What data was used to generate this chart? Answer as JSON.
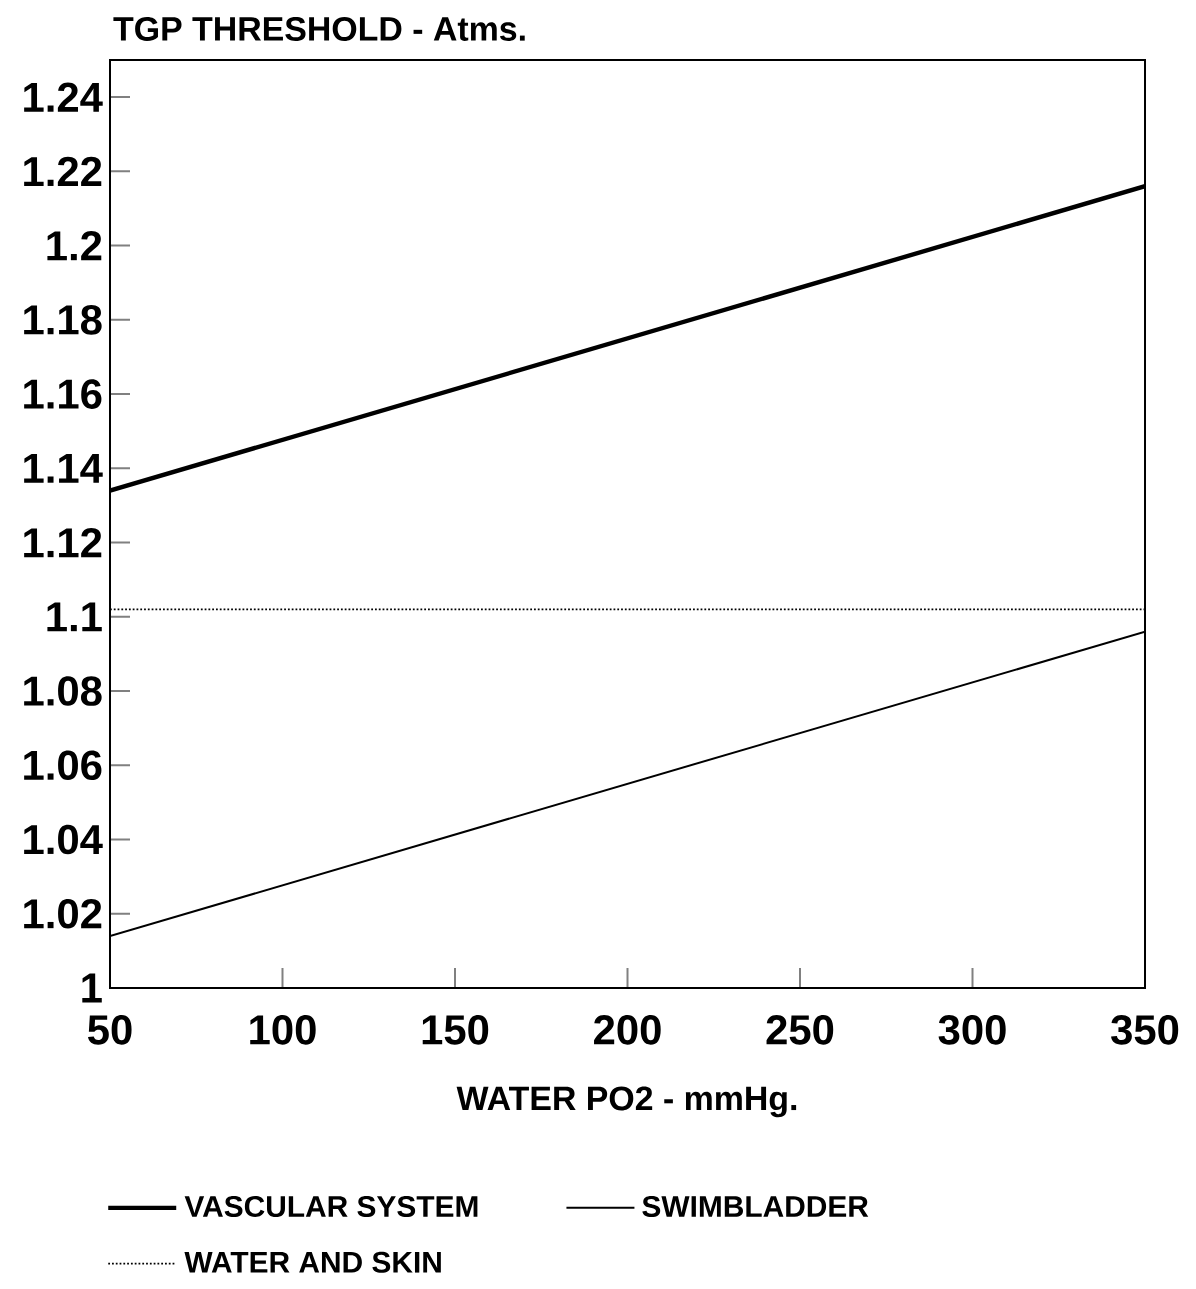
{
  "chart_data": {
    "type": "line",
    "ylabel": "TGP THRESHOLD - Atms.",
    "xlabel": "WATER PO2 - mmHg.",
    "x": [
      50,
      350
    ],
    "series": [
      {
        "name": "VASCULAR SYSTEM",
        "color": "#000000",
        "values": [
          1.134,
          1.216
        ],
        "line_style": "solid"
      },
      {
        "name": "SWIMBLADDER",
        "color": "#000000",
        "values": [
          1.014,
          1.096
        ],
        "line_style": "solid"
      },
      {
        "name": "WATER AND SKIN",
        "color": "#000000",
        "values": [
          1.102,
          1.102
        ],
        "line_style": "dotted"
      }
    ],
    "xlim": [
      50,
      350
    ],
    "ylim": [
      1,
      1.25
    ],
    "xticks": [
      50,
      100,
      150,
      200,
      250,
      300,
      350
    ],
    "yticks": [
      1,
      1.02,
      1.04,
      1.06,
      1.08,
      1.1,
      1.12,
      1.14,
      1.16,
      1.18,
      1.2,
      1.22,
      1.24
    ],
    "legend": "bottom",
    "grid": false,
    "marker": "none"
  }
}
